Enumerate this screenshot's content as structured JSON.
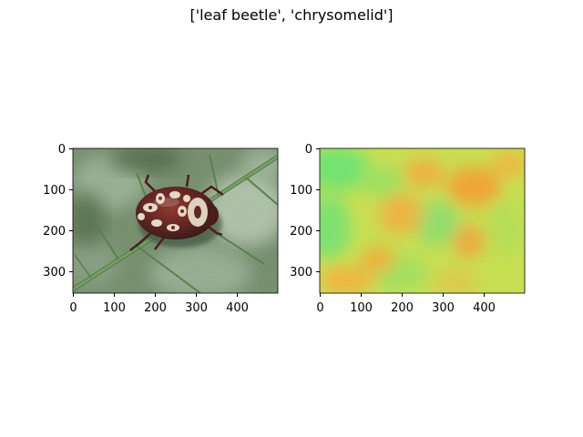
{
  "figure": {
    "title": "['leaf beetle', 'chrysomelid']"
  },
  "panels": [
    {
      "name": "original-image",
      "image": "leaf beetle on green leaf photograph",
      "x_ticks": [
        "0",
        "100",
        "200",
        "300",
        "400"
      ],
      "y_ticks": [
        "0",
        "100",
        "200",
        "300"
      ]
    },
    {
      "name": "saliency-heatmap",
      "image": "green-yellow-orange heatmap overlay",
      "x_ticks": [
        "0",
        "100",
        "200",
        "300",
        "400"
      ],
      "y_ticks": [
        "0",
        "100",
        "200",
        "300"
      ]
    }
  ],
  "colors": {
    "leaf_dark": "#4b6b3f",
    "leaf_light": "#9fb79a",
    "beetle_body": "#5a1410",
    "beetle_spots": "#e8dcc8",
    "heat_green": "#6ee66a",
    "heat_yellow": "#c9e24a",
    "heat_orange": "#f5a32c"
  }
}
